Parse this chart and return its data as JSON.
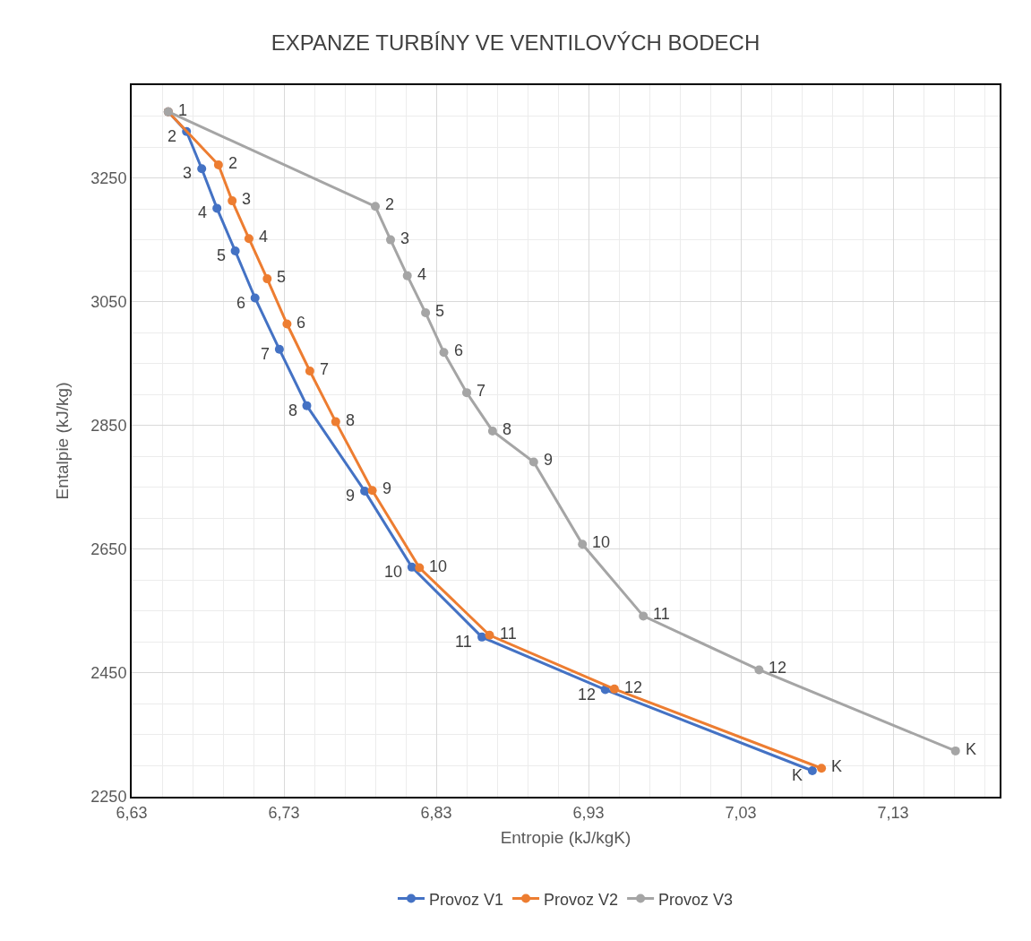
{
  "chart_data": {
    "type": "line",
    "title": "EXPANZE TURBÍNY VE VENTILOVÝCH BODECH",
    "xlabel": "Entropie (kJ/kgK)",
    "ylabel": "Entalpie (kJ/kg)",
    "xlim": [
      6.63,
      7.2
    ],
    "xticks": [
      {
        "value": 6.63,
        "label": "6,63"
      },
      {
        "value": 6.73,
        "label": "6,73"
      },
      {
        "value": 6.83,
        "label": "6,83"
      },
      {
        "value": 6.93,
        "label": "6,93"
      },
      {
        "value": 7.03,
        "label": "7,03"
      },
      {
        "value": 7.13,
        "label": "7,13"
      }
    ],
    "ylim": [
      2250,
      3400
    ],
    "yticks": [
      2250,
      2450,
      2650,
      2850,
      3050,
      3250
    ],
    "grid": true,
    "legend": "bottom",
    "marker": "circle",
    "line_style": "solid",
    "series": [
      {
        "name": "Provoz V1",
        "color": "#4472c4",
        "x": [
          6.654,
          6.666,
          6.676,
          6.686,
          6.698,
          6.711,
          6.727,
          6.745,
          6.783,
          6.814,
          6.86,
          6.941,
          7.077
        ],
        "values": [
          3357,
          3325,
          3265,
          3201,
          3132,
          3056,
          2973,
          2882,
          2744,
          2621,
          2508,
          2423,
          2292
        ]
      },
      {
        "name": "Provoz V2",
        "color": "#ed7d31",
        "x": [
          6.654,
          6.687,
          6.696,
          6.707,
          6.719,
          6.732,
          6.747,
          6.764,
          6.788,
          6.819,
          6.865,
          6.947,
          7.083
        ],
        "values": [
          3357,
          3271,
          3213,
          3152,
          3087,
          3014,
          2938,
          2856,
          2745,
          2620,
          2511,
          2424,
          2296
        ]
      },
      {
        "name": "Provoz V3",
        "color": "#a5a5a5",
        "x": [
          6.654,
          6.79,
          6.8,
          6.811,
          6.823,
          6.835,
          6.85,
          6.867,
          6.894,
          6.926,
          6.966,
          7.042,
          7.171
        ],
        "values": [
          3357,
          3204,
          3150,
          3092,
          3032,
          2968,
          2903,
          2841,
          2791,
          2658,
          2542,
          2455,
          2324
        ]
      }
    ],
    "annotations": [
      {
        "text": "2",
        "x": 6.666,
        "y": 3325
      },
      {
        "text": "3",
        "x": 6.676,
        "y": 3265
      },
      {
        "text": "4",
        "x": 6.686,
        "y": 3201
      },
      {
        "text": "5",
        "x": 6.698,
        "y": 3132
      },
      {
        "text": "6",
        "x": 6.711,
        "y": 3056
      },
      {
        "text": "7",
        "x": 6.727,
        "y": 2973
      },
      {
        "text": "8",
        "x": 6.745,
        "y": 2882
      },
      {
        "text": "9",
        "x": 6.783,
        "y": 2744
      },
      {
        "text": "10",
        "x": 6.814,
        "y": 2621
      },
      {
        "text": "11",
        "x": 6.86,
        "y": 2508
      },
      {
        "text": "12",
        "x": 6.941,
        "y": 2423
      },
      {
        "text": "K",
        "x": 7.077,
        "y": 2292
      },
      {
        "text": "2",
        "x": 6.687,
        "y": 3271
      },
      {
        "text": "3",
        "x": 6.696,
        "y": 3213
      },
      {
        "text": "4",
        "x": 6.707,
        "y": 3152
      },
      {
        "text": "5",
        "x": 6.719,
        "y": 3087
      },
      {
        "text": "6",
        "x": 6.732,
        "y": 3014
      },
      {
        "text": "7",
        "x": 6.747,
        "y": 2938
      },
      {
        "text": "8",
        "x": 6.764,
        "y": 2856
      },
      {
        "text": "9",
        "x": 6.788,
        "y": 2745
      },
      {
        "text": "10",
        "x": 6.819,
        "y": 2620
      },
      {
        "text": "11",
        "x": 6.865,
        "y": 2511
      },
      {
        "text": "12",
        "x": 6.947,
        "y": 2424
      },
      {
        "text": "K",
        "x": 7.083,
        "y": 2296
      },
      {
        "text": "1",
        "x": 6.654,
        "y": 3357
      },
      {
        "text": "2",
        "x": 6.79,
        "y": 3204
      },
      {
        "text": "3",
        "x": 6.8,
        "y": 3150
      },
      {
        "text": "4",
        "x": 6.811,
        "y": 3092
      },
      {
        "text": "5",
        "x": 6.823,
        "y": 3032
      },
      {
        "text": "6",
        "x": 6.835,
        "y": 2968
      },
      {
        "text": "7",
        "x": 6.85,
        "y": 2903
      },
      {
        "text": "8",
        "x": 6.867,
        "y": 2841
      },
      {
        "text": "9",
        "x": 6.894,
        "y": 2791
      },
      {
        "text": "10",
        "x": 6.926,
        "y": 2658
      },
      {
        "text": "11",
        "x": 6.966,
        "y": 2542
      },
      {
        "text": "12",
        "x": 7.042,
        "y": 2455
      },
      {
        "text": "K",
        "x": 7.171,
        "y": 2324
      }
    ]
  }
}
